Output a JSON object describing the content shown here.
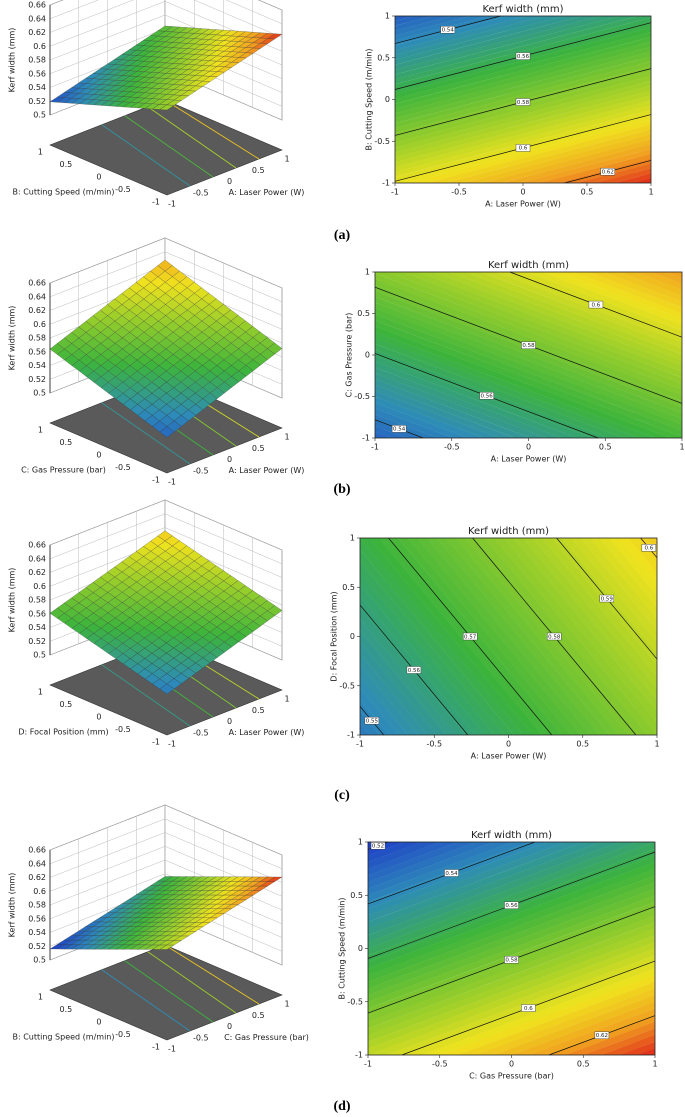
{
  "captions": [
    "(a)",
    "(b)",
    "(c)",
    "(d)"
  ],
  "chart_data": [
    {
      "type": "surface",
      "zlabel": "Kerf width (mm)",
      "xlabel": "A: Laser Power  (W)",
      "ylabel": "B: Cutting Speed (m/min)",
      "zlim": [
        0.5,
        0.66
      ],
      "zticks": [
        0.5,
        0.52,
        0.54,
        0.56,
        0.58,
        0.6,
        0.62,
        0.64,
        0.66
      ],
      "xlim": [
        -1,
        1
      ],
      "xticks": [
        -1,
        -0.5,
        0,
        0.5,
        1
      ],
      "ylim": [
        -1,
        1
      ],
      "yticks": [
        -1,
        -0.5,
        0,
        0.5,
        1
      ]
    },
    {
      "type": "contour",
      "title": "Kerf width (mm)",
      "xlabel": "A: Laser Power  (W)",
      "ylabel": "B: Cutting Speed (m/min)",
      "xlim": [
        -1,
        1
      ],
      "xticks": [
        -1,
        -0.5,
        0,
        0.5,
        1
      ],
      "ylim": [
        -1,
        1
      ],
      "yticks": [
        -1,
        -0.5,
        0,
        0.5,
        1
      ],
      "levels": [
        0.54,
        0.56,
        0.58,
        0.6,
        0.62
      ]
    },
    {
      "type": "surface",
      "zlabel": "Kerf width (mm)",
      "xlabel": "A: Laser Power  (W)",
      "ylabel": "C: Gas Pressure (bar)",
      "zlim": [
        0.5,
        0.66
      ],
      "zticks": [
        0.5,
        0.52,
        0.54,
        0.56,
        0.58,
        0.6,
        0.62,
        0.64,
        0.66
      ],
      "xlim": [
        -1,
        1
      ],
      "xticks": [
        -1,
        -0.5,
        0,
        0.5,
        1
      ],
      "ylim": [
        -1,
        1
      ],
      "yticks": [
        -1,
        -0.5,
        0,
        0.5,
        1
      ]
    },
    {
      "type": "contour",
      "title": "Kerf width (mm)",
      "xlabel": "A: Laser Power  (W)",
      "ylabel": "C: Gas Pressure (bar)",
      "xlim": [
        -1,
        1
      ],
      "xticks": [
        -1,
        -0.5,
        0,
        0.5,
        1
      ],
      "ylim": [
        -1,
        1
      ],
      "yticks": [
        -1,
        -0.5,
        0,
        0.5,
        1
      ],
      "levels": [
        0.54,
        0.56,
        0.58,
        0.6
      ]
    },
    {
      "type": "surface",
      "zlabel": "Kerf width (mm)",
      "xlabel": "A: Laser Power  (W)",
      "ylabel": "D: Focal Position (mm)",
      "zlim": [
        0.5,
        0.66
      ],
      "zticks": [
        0.5,
        0.52,
        0.54,
        0.56,
        0.58,
        0.6,
        0.62,
        0.64,
        0.66
      ],
      "xlim": [
        -1,
        1
      ],
      "xticks": [
        -1,
        -0.5,
        0,
        0.5,
        1
      ],
      "ylim": [
        -1,
        1
      ],
      "yticks": [
        -1,
        -0.5,
        0,
        0.5,
        1
      ]
    },
    {
      "type": "contour",
      "title": "Kerf width (mm)",
      "xlabel": "A: Laser Power  (W)",
      "ylabel": "D: Focal Position (mm)",
      "xlim": [
        -1,
        1
      ],
      "xticks": [
        -1,
        -0.5,
        0,
        0.5,
        1
      ],
      "ylim": [
        -1,
        1
      ],
      "yticks": [
        -1,
        -0.5,
        0,
        0.5,
        1
      ],
      "levels": [
        0.55,
        0.56,
        0.57,
        0.58,
        0.59,
        0.6
      ]
    },
    {
      "type": "surface",
      "zlabel": "Kerf width (mm)",
      "xlabel": "C: Gas Pressure (bar)",
      "ylabel": "B: Cutting Speed (m/min)",
      "zlim": [
        0.5,
        0.66
      ],
      "zticks": [
        0.5,
        0.52,
        0.54,
        0.56,
        0.58,
        0.6,
        0.62,
        0.64,
        0.66
      ],
      "xlim": [
        -1,
        1
      ],
      "xticks": [
        -1,
        -0.5,
        0,
        0.5,
        1
      ],
      "ylim": [
        -1,
        1
      ],
      "yticks": [
        -1,
        -0.5,
        0,
        0.5,
        1
      ]
    },
    {
      "type": "contour",
      "title": "Kerf width (mm)",
      "xlabel": "C: Gas Pressure (bar)",
      "ylabel": "B: Cutting Speed (m/min)",
      "xlim": [
        -1,
        1
      ],
      "xticks": [
        -1,
        -0.5,
        0,
        0.5,
        1
      ],
      "ylim": [
        -1,
        1
      ],
      "yticks": [
        -1,
        -0.5,
        0,
        0.5,
        1
      ],
      "levels": [
        0.52,
        0.54,
        0.56,
        0.58,
        0.6,
        0.62
      ]
    }
  ]
}
